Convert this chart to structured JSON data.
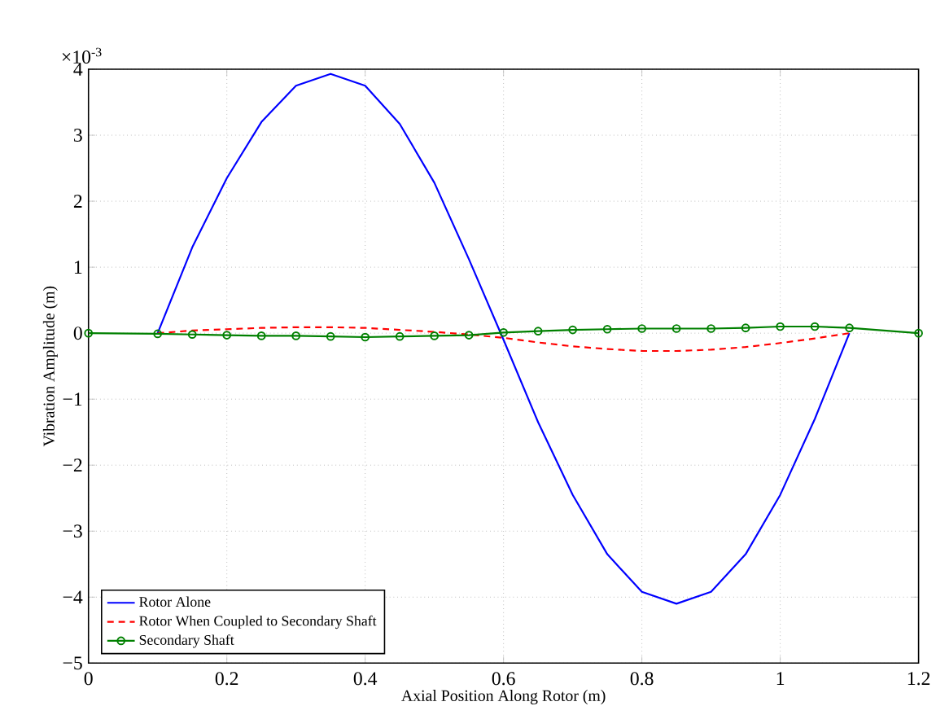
{
  "chart_data": {
    "type": "line",
    "xlabel": "Axial Position Along Rotor (m)",
    "ylabel": "Vibration Amplitude (m)",
    "annotations": [
      "×10$^{-3}$"
    ],
    "xlim": [
      0,
      1.2
    ],
    "xticks": [
      0,
      0.2,
      0.4,
      0.6,
      0.8,
      1,
      1.2
    ],
    "ylim": [
      -5,
      4
    ],
    "yticks": [
      {
        "value": -5,
        "label": "−5"
      },
      {
        "value": -4,
        "label": "−4"
      },
      {
        "value": -3,
        "label": "−3"
      },
      {
        "value": -2,
        "label": "−2"
      },
      {
        "value": -1,
        "label": "−1"
      },
      0,
      1,
      2,
      3,
      4
    ],
    "grid": true,
    "legend": "bottom left",
    "series": [
      {
        "name": "Rotor Alone",
        "color": "#0000ff",
        "line_style": "solid",
        "marker": "none",
        "x": [
          0.1,
          0.15,
          0.2,
          0.25,
          0.3,
          0.35,
          0.4,
          0.45,
          0.5,
          0.55,
          0.6,
          0.65,
          0.7,
          0.75,
          0.8,
          0.85,
          0.9,
          0.95,
          1.0,
          1.05,
          1.1
        ],
        "values": [
          0,
          1.3,
          2.35,
          3.2,
          3.75,
          3.93,
          3.75,
          3.17,
          2.28,
          1.12,
          -0.1,
          -1.35,
          -2.45,
          -3.35,
          -3.92,
          -4.1,
          -3.92,
          -3.35,
          -2.45,
          -1.3,
          0
        ]
      },
      {
        "name": "Rotor When Coupled to Secondary Shaft",
        "color": "#ff0000",
        "line_style": "dashed",
        "marker": "none",
        "x": [
          0.1,
          0.15,
          0.2,
          0.25,
          0.3,
          0.35,
          0.4,
          0.45,
          0.5,
          0.55,
          0.6,
          0.65,
          0.7,
          0.75,
          0.8,
          0.85,
          0.9,
          0.95,
          1.0,
          1.05,
          1.1
        ],
        "values": [
          0,
          0.04,
          0.06,
          0.08,
          0.09,
          0.09,
          0.08,
          0.05,
          0.02,
          -0.02,
          -0.07,
          -0.14,
          -0.2,
          -0.24,
          -0.27,
          -0.27,
          -0.25,
          -0.21,
          -0.15,
          -0.08,
          0
        ]
      },
      {
        "name": "Secondary Shaft",
        "color": "#008000",
        "line_style": "solid",
        "marker": "circle",
        "x": [
          0,
          0.1,
          0.15,
          0.2,
          0.25,
          0.3,
          0.35,
          0.4,
          0.45,
          0.5,
          0.55,
          0.6,
          0.65,
          0.7,
          0.75,
          0.8,
          0.85,
          0.9,
          0.95,
          1.0,
          1.05,
          1.1,
          1.2
        ],
        "values": [
          0,
          -0.01,
          -0.02,
          -0.03,
          -0.04,
          -0.04,
          -0.05,
          -0.06,
          -0.05,
          -0.04,
          -0.03,
          0.01,
          0.03,
          0.05,
          0.06,
          0.07,
          0.07,
          0.07,
          0.08,
          0.1,
          0.1,
          0.08,
          0
        ]
      }
    ]
  }
}
